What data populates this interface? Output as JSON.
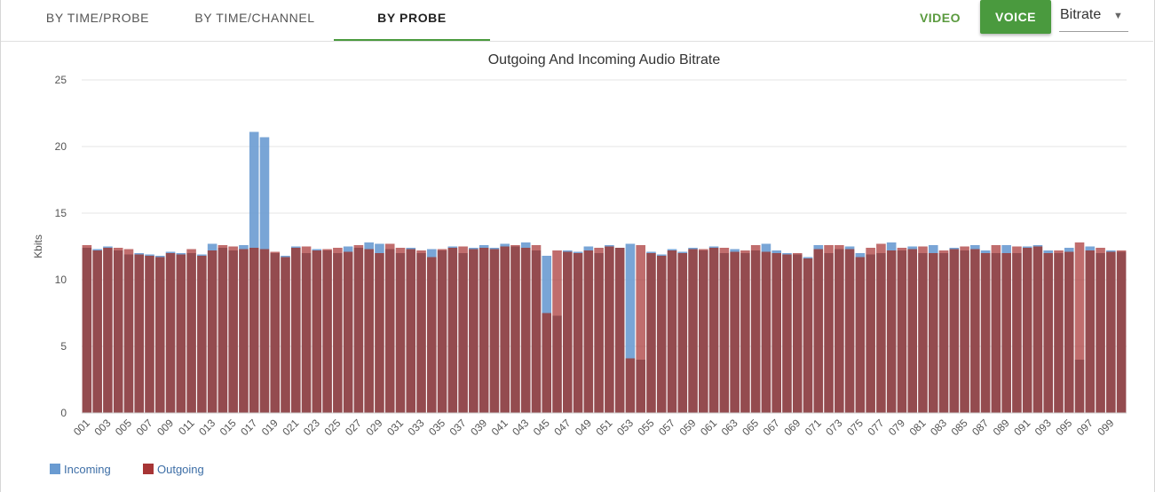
{
  "tabs": [
    {
      "label": "BY TIME/PROBE",
      "active": false
    },
    {
      "label": "BY TIME/CHANNEL",
      "active": false
    },
    {
      "label": "BY PROBE",
      "active": true
    }
  ],
  "media": {
    "video_label": "VIDEO",
    "voice_label": "VOICE"
  },
  "metric_select": {
    "value": "Bitrate"
  },
  "colors": {
    "accent": "#4a9a3e",
    "incoming": "#6a9bd1",
    "outgoing": "#a73535",
    "overlap": "#944b4f"
  },
  "chart_data": {
    "type": "bar",
    "title": "Outgoing And Incoming Audio Bitrate",
    "xlabel": "",
    "ylabel": "Kbits",
    "ylim": [
      0,
      25
    ],
    "yticks": [
      0,
      5,
      10,
      15,
      20,
      25
    ],
    "grid": true,
    "legend_position": "bottom-left",
    "categories": [
      "001",
      "002",
      "003",
      "004",
      "005",
      "006",
      "007",
      "008",
      "009",
      "010",
      "011",
      "012",
      "013",
      "014",
      "015",
      "016",
      "017",
      "018",
      "019",
      "020",
      "021",
      "022",
      "023",
      "024",
      "025",
      "026",
      "027",
      "028",
      "029",
      "030",
      "031",
      "032",
      "033",
      "034",
      "035",
      "036",
      "037",
      "038",
      "039",
      "040",
      "041",
      "042",
      "043",
      "044",
      "045",
      "046",
      "047",
      "048",
      "049",
      "050",
      "051",
      "052",
      "053",
      "054",
      "055",
      "056",
      "057",
      "058",
      "059",
      "060",
      "061",
      "062",
      "063",
      "064",
      "065",
      "066",
      "067",
      "068",
      "069",
      "070",
      "071",
      "072",
      "073",
      "074",
      "075",
      "076",
      "077",
      "078",
      "079",
      "080",
      "081",
      "082",
      "083",
      "084",
      "085",
      "086",
      "087",
      "088",
      "089",
      "090",
      "091",
      "092",
      "093",
      "094",
      "095",
      "096",
      "097",
      "098",
      "099",
      "100"
    ],
    "series": [
      {
        "name": "Incoming",
        "values": [
          12.4,
          12.3,
          12.5,
          12.2,
          11.9,
          12.0,
          11.9,
          11.8,
          12.1,
          12.0,
          12.0,
          11.9,
          12.7,
          12.4,
          12.2,
          12.6,
          21.1,
          20.7,
          12.0,
          11.8,
          12.5,
          12.0,
          12.3,
          12.2,
          12.0,
          12.5,
          12.4,
          12.8,
          12.7,
          12.3,
          12.0,
          12.4,
          12.0,
          12.3,
          12.2,
          12.5,
          12.0,
          12.4,
          12.6,
          12.4,
          12.7,
          12.5,
          12.8,
          12.2,
          11.8,
          7.3,
          12.2,
          12.1,
          12.5,
          12.0,
          12.6,
          12.4,
          12.7,
          4.0,
          12.1,
          11.9,
          12.3,
          12.1,
          12.4,
          12.2,
          12.5,
          12.0,
          12.3,
          12.0,
          12.2,
          12.7,
          12.2,
          12.0,
          11.9,
          11.7,
          12.6,
          12.0,
          12.3,
          12.5,
          12.0,
          11.9,
          12.0,
          12.8,
          12.2,
          12.5,
          12.0,
          12.6,
          12.0,
          12.4,
          12.2,
          12.6,
          12.2,
          12.0,
          12.6,
          12.0,
          12.5,
          12.6,
          12.2,
          12.0,
          12.4,
          4.0,
          12.5,
          12.0,
          12.2,
          12.1
        ]
      },
      {
        "name": "Outgoing",
        "values": [
          12.6,
          12.2,
          12.4,
          12.4,
          12.3,
          11.9,
          11.8,
          11.7,
          12.0,
          11.9,
          12.3,
          11.8,
          12.2,
          12.6,
          12.5,
          12.3,
          12.4,
          12.3,
          12.1,
          11.7,
          12.4,
          12.5,
          12.2,
          12.3,
          12.4,
          12.1,
          12.6,
          12.3,
          12.0,
          12.7,
          12.4,
          12.3,
          12.2,
          11.7,
          12.3,
          12.4,
          12.5,
          12.3,
          12.4,
          12.3,
          12.5,
          12.6,
          12.4,
          12.6,
          7.5,
          12.2,
          12.1,
          12.0,
          12.2,
          12.4,
          12.5,
          12.4,
          4.1,
          12.6,
          12.0,
          11.8,
          12.2,
          12.0,
          12.3,
          12.3,
          12.4,
          12.4,
          12.1,
          12.2,
          12.6,
          12.1,
          12.0,
          11.9,
          12.0,
          11.6,
          12.3,
          12.6,
          12.6,
          12.3,
          11.7,
          12.4,
          12.7,
          12.2,
          12.4,
          12.3,
          12.5,
          12.0,
          12.2,
          12.3,
          12.5,
          12.3,
          12.0,
          12.6,
          12.0,
          12.5,
          12.4,
          12.5,
          12.0,
          12.2,
          12.1,
          12.8,
          12.2,
          12.4,
          12.1,
          12.2
        ]
      }
    ]
  }
}
